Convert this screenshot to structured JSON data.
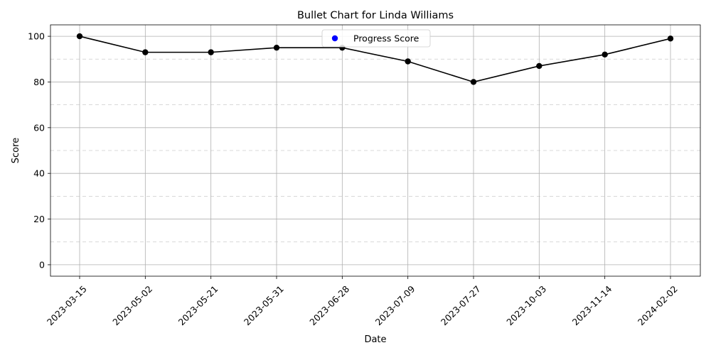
{
  "chart_data": {
    "type": "line",
    "title": "Bullet Chart for Linda Williams",
    "xlabel": "Date",
    "ylabel": "Score",
    "categories": [
      "2023-03-15",
      "2023-05-02",
      "2023-05-21",
      "2023-05-31",
      "2023-06-28",
      "2023-07-09",
      "2023-07-27",
      "2023-10-03",
      "2023-11-14",
      "2024-02-02"
    ],
    "series": [
      {
        "name": "Progress Score",
        "values": [
          100,
          93,
          93,
          95,
          95,
          89,
          80,
          87,
          92,
          99
        ]
      }
    ],
    "ylim": [
      -5,
      105
    ],
    "yticks": [
      0,
      20,
      40,
      60,
      80,
      100
    ],
    "dashed_gridlines": [
      10,
      30,
      50,
      70,
      90
    ],
    "grid": true,
    "legend": {
      "placement": "upper-center",
      "marker_color": "#0000ff"
    },
    "colors": {
      "line": "#000000",
      "marker": "#000000",
      "legend_marker": "#0000ff"
    }
  }
}
